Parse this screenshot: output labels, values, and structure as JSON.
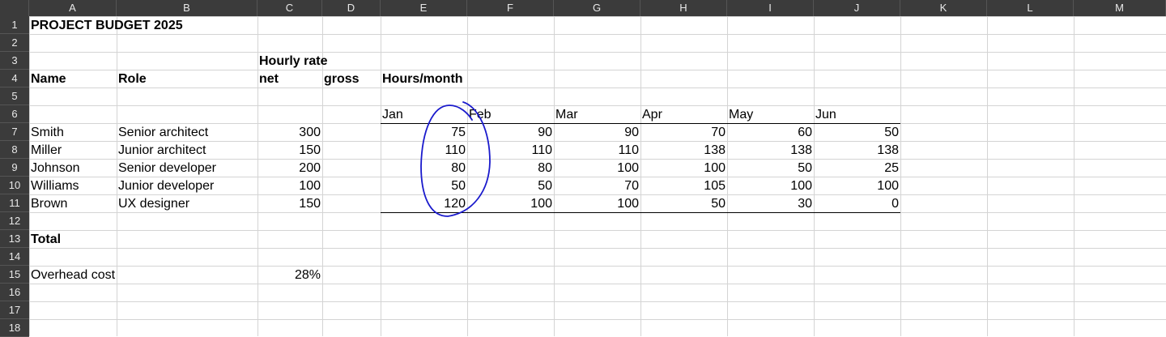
{
  "columns": [
    "A",
    "B",
    "C",
    "D",
    "E",
    "F",
    "G",
    "H",
    "I",
    "J",
    "K",
    "L",
    "M"
  ],
  "rows": [
    "1",
    "2",
    "3",
    "4",
    "5",
    "6",
    "7",
    "8",
    "9",
    "10",
    "11",
    "12",
    "13",
    "14",
    "15",
    "16",
    "17",
    "18"
  ],
  "cells": {
    "A1": "PROJECT BUDGET 2025",
    "C3": "Hourly rate",
    "A4": "Name",
    "B4": "Role",
    "C4": "net",
    "D4": "gross",
    "E4": "Hours/month",
    "E6": "Jan",
    "F6": "Feb",
    "G6": "Mar",
    "H6": "Apr",
    "I6": "May",
    "J6": "Jun",
    "A7": "Smith",
    "B7": "Senior architect",
    "C7": "300",
    "E7": "75",
    "F7": "90",
    "G7": "90",
    "H7": "70",
    "I7": "60",
    "J7": "50",
    "A8": "Miller",
    "B8": "Junior architect",
    "C8": "150",
    "E8": "110",
    "F8": "110",
    "G8": "110",
    "H8": "138",
    "I8": "138",
    "J8": "138",
    "A9": "Johnson",
    "B9": "Senior developer",
    "C9": "200",
    "E9": "80",
    "F9": "80",
    "G9": "100",
    "H9": "100",
    "I9": "50",
    "J9": "25",
    "A10": "Williams",
    "B10": "Junior developer",
    "C10": "100",
    "E10": "50",
    "F10": "50",
    "G10": "70",
    "H10": "105",
    "I10": "100",
    "J10": "100",
    "A11": "Brown",
    "B11": "UX designer",
    "C11": "150",
    "E11": "120",
    "F11": "100",
    "G11": "100",
    "H11": "50",
    "I11": "30",
    "J11": "0",
    "A13": "Total",
    "A15": "Overhead cost",
    "C15": "28%"
  },
  "styles": {
    "header_bg": "#3b3b3b",
    "header_text": "#e8e8e8",
    "gridline": "#d4d4d4",
    "annotation": "#1a1acc"
  }
}
